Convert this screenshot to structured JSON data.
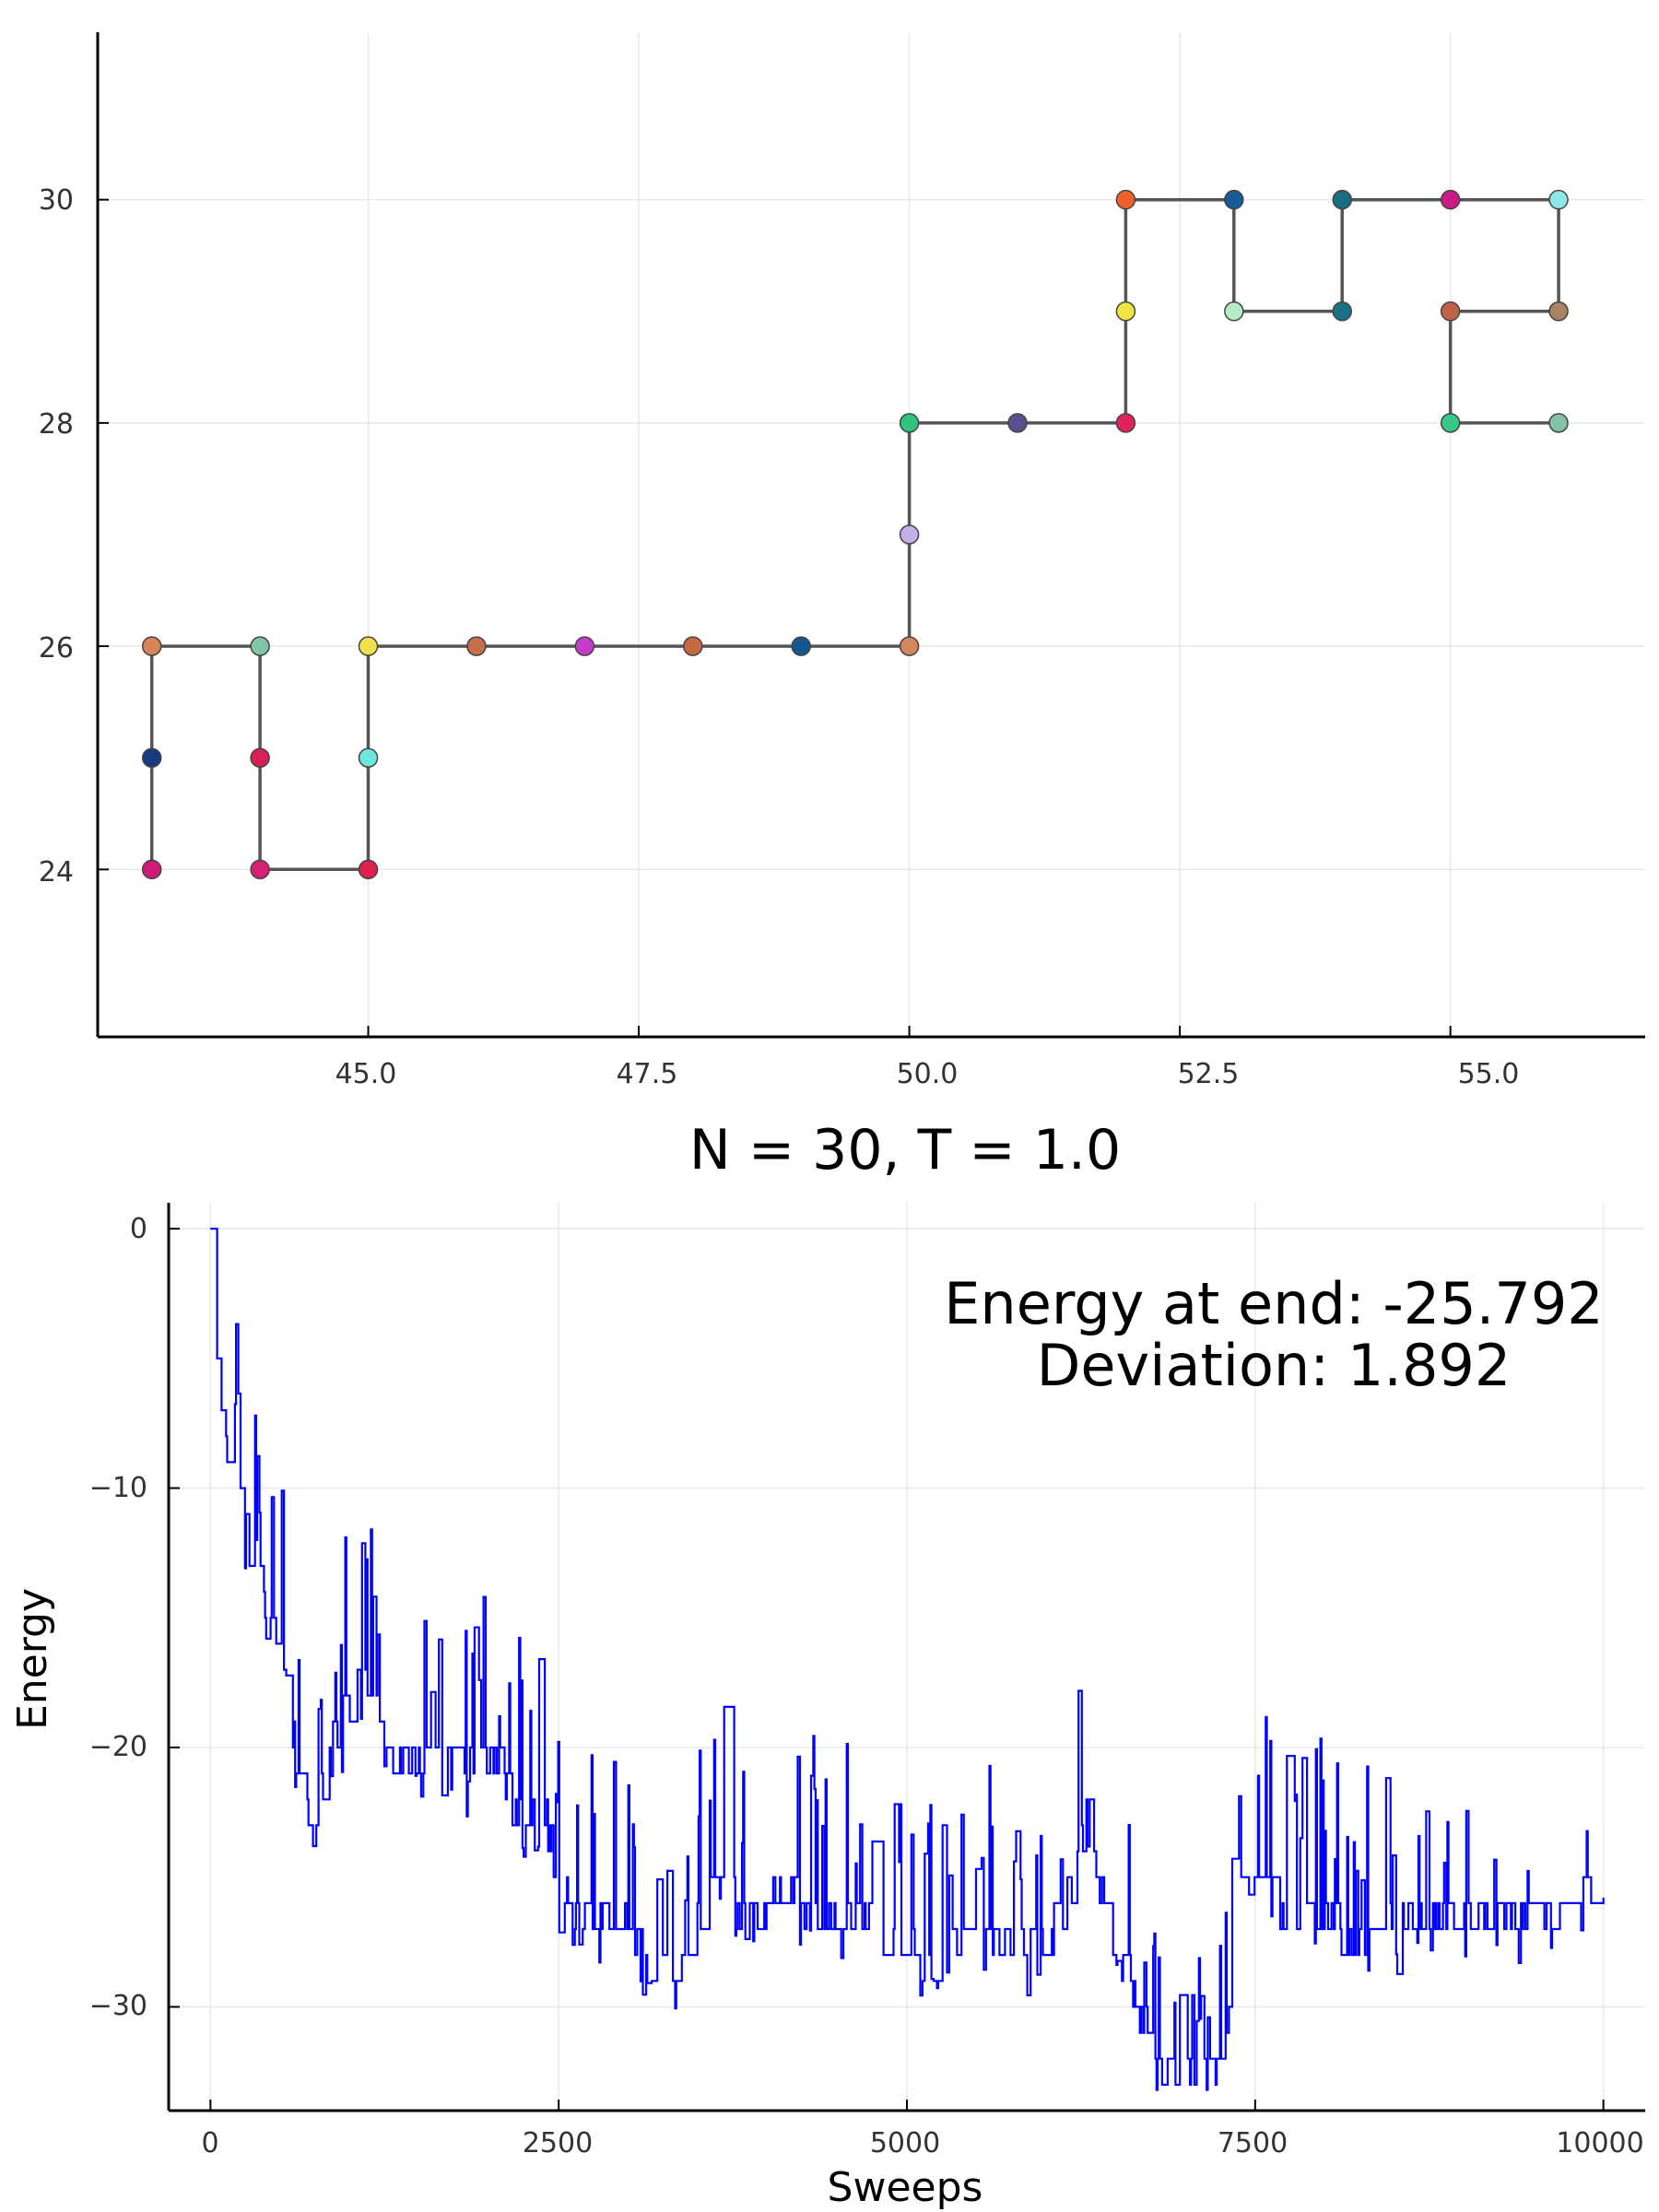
{
  "chart_data": [
    {
      "type": "line+scatter",
      "title": "",
      "xlabel": "",
      "ylabel": "",
      "xlim": [
        42.5,
        56.8
      ],
      "ylim": [
        22.5,
        31.5
      ],
      "xticks": [
        "45.0",
        "47.5",
        "50.0",
        "52.5",
        "55.0"
      ],
      "yticks": [
        "24",
        "26",
        "28",
        "30"
      ],
      "grid": true,
      "legend": "none",
      "line_color": "#555555",
      "points": [
        {
          "x": 43,
          "y": 24,
          "color": "#d01a78"
        },
        {
          "x": 43,
          "y": 25,
          "color": "#163a80"
        },
        {
          "x": 43,
          "y": 26,
          "color": "#d8835a"
        },
        {
          "x": 44,
          "y": 26,
          "color": "#7fc5a6"
        },
        {
          "x": 44,
          "y": 25,
          "color": "#d91f55"
        },
        {
          "x": 44,
          "y": 24,
          "color": "#d91f75"
        },
        {
          "x": 45,
          "y": 24,
          "color": "#e0204a"
        },
        {
          "x": 45,
          "y": 25,
          "color": "#6ee8dc"
        },
        {
          "x": 45,
          "y": 26,
          "color": "#f3e04a"
        },
        {
          "x": 46,
          "y": 26,
          "color": "#c66f48"
        },
        {
          "x": 47,
          "y": 26,
          "color": "#c63cc9"
        },
        {
          "x": 48,
          "y": 26,
          "color": "#c76a42"
        },
        {
          "x": 49,
          "y": 26,
          "color": "#14568f"
        },
        {
          "x": 50,
          "y": 26,
          "color": "#d4875c"
        },
        {
          "x": 50,
          "y": 27,
          "color": "#c2b0ea"
        },
        {
          "x": 50,
          "y": 28,
          "color": "#2ec47c"
        },
        {
          "x": 51,
          "y": 28,
          "color": "#5a4f8e"
        },
        {
          "x": 52,
          "y": 28,
          "color": "#e0215a"
        },
        {
          "x": 52,
          "y": 29,
          "color": "#efe741"
        },
        {
          "x": 52,
          "y": 30,
          "color": "#f0602a"
        },
        {
          "x": 53,
          "y": 30,
          "color": "#165a96"
        },
        {
          "x": 53,
          "y": 29,
          "color": "#b4ecc4"
        },
        {
          "x": 54,
          "y": 29,
          "color": "#1a7286"
        },
        {
          "x": 54,
          "y": 30,
          "color": "#1a6e82"
        },
        {
          "x": 55,
          "y": 30,
          "color": "#cc1b86"
        },
        {
          "x": 56,
          "y": 30,
          "color": "#8fe8e6"
        },
        {
          "x": 56,
          "y": 29,
          "color": "#a88462"
        },
        {
          "x": 55,
          "y": 29,
          "color": "#bf6245"
        },
        {
          "x": 55,
          "y": 28,
          "color": "#36c98a"
        },
        {
          "x": 56,
          "y": 28,
          "color": "#82c2a6"
        }
      ]
    },
    {
      "type": "line",
      "title": "N = 30, T = 1.0",
      "xlabel": "Sweeps",
      "ylabel": "Energy",
      "xlim": [
        -300,
        10300
      ],
      "ylim": [
        -34,
        1
      ],
      "xticks": [
        "0",
        "2500",
        "5000",
        "7500",
        "10000"
      ],
      "yticks": [
        "0",
        "−10",
        "−20",
        "−30"
      ],
      "grid": true,
      "legend": "none",
      "annotation": [
        "Energy at end: -25.792",
        "Deviation: 1.892"
      ],
      "series": [
        {
          "color": "#0000ff",
          "trend": [
            [
              0,
              0
            ],
            [
              30,
              -1
            ],
            [
              60,
              -6
            ],
            [
              100,
              -6.5
            ],
            [
              130,
              -9
            ],
            [
              200,
              -10
            ],
            [
              250,
              -11
            ],
            [
              300,
              -12
            ],
            [
              350,
              -12.5
            ],
            [
              400,
              -14
            ],
            [
              450,
              -14.5
            ],
            [
              500,
              -15.5
            ],
            [
              550,
              -16
            ],
            [
              600,
              -19
            ],
            [
              650,
              -21
            ],
            [
              700,
              -22
            ],
            [
              800,
              -21.5
            ],
            [
              900,
              -19
            ],
            [
              1000,
              -18
            ],
            [
              1100,
              -17
            ],
            [
              1200,
              -18
            ],
            [
              1300,
              -19.5
            ],
            [
              1400,
              -20
            ],
            [
              1500,
              -20
            ],
            [
              1600,
              -19.5
            ],
            [
              1700,
              -20
            ],
            [
              1800,
              -20.5
            ],
            [
              1900,
              -20
            ],
            [
              2000,
              -20
            ],
            [
              2100,
              -20.5
            ],
            [
              2200,
              -22
            ],
            [
              2300,
              -22.5
            ],
            [
              2400,
              -22
            ],
            [
              2500,
              -25
            ],
            [
              2600,
              -25.5
            ],
            [
              2700,
              -26
            ],
            [
              2800,
              -26.5
            ],
            [
              2900,
              -26.5
            ],
            [
              3000,
              -26.5
            ],
            [
              3100,
              -27
            ],
            [
              3200,
              -28
            ],
            [
              3300,
              -28.5
            ],
            [
              3400,
              -28
            ],
            [
              3500,
              -26
            ],
            [
              3600,
              -24.5
            ],
            [
              3700,
              -24.5
            ],
            [
              3800,
              -26
            ],
            [
              3900,
              -26
            ],
            [
              4000,
              -25.5
            ],
            [
              4200,
              -25.5
            ],
            [
              4400,
              -26
            ],
            [
              4600,
              -26
            ],
            [
              4800,
              -26.5
            ],
            [
              5000,
              -27
            ],
            [
              5200,
              -28
            ],
            [
              5400,
              -27
            ],
            [
              5600,
              -26.5
            ],
            [
              5800,
              -27.5
            ],
            [
              6000,
              -27
            ],
            [
              6200,
              -25
            ],
            [
              6300,
              -22
            ],
            [
              6400,
              -25
            ],
            [
              6500,
              -27
            ],
            [
              6600,
              -28.5
            ],
            [
              6700,
              -30
            ],
            [
              6800,
              -32
            ],
            [
              7000,
              -32.5
            ],
            [
              7200,
              -32.5
            ],
            [
              7300,
              -30
            ],
            [
              7400,
              -25
            ],
            [
              7500,
              -23.5
            ],
            [
              7600,
              -25
            ],
            [
              7800,
              -26.5
            ],
            [
              8000,
              -26
            ],
            [
              8200,
              -27
            ],
            [
              8400,
              -26.5
            ],
            [
              8600,
              -26.5
            ],
            [
              8800,
              -26
            ],
            [
              9000,
              -26.5
            ],
            [
              9200,
              -26
            ],
            [
              9400,
              -26.5
            ],
            [
              9600,
              -26
            ],
            [
              9800,
              -25.5
            ],
            [
              9950,
              -25
            ],
            [
              10000,
              -25.792
            ]
          ]
        }
      ]
    }
  ]
}
